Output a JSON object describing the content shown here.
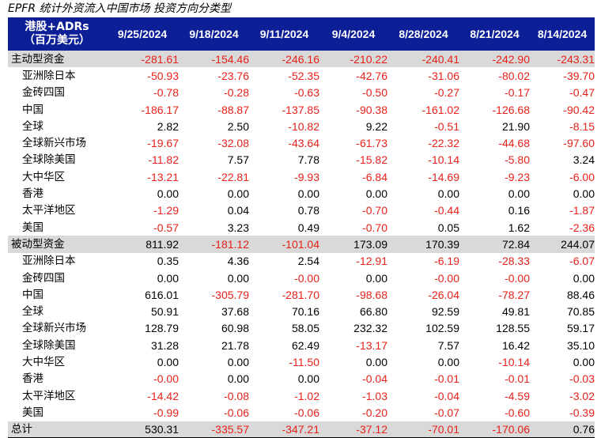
{
  "title": "EPFR 统计外资流入中国市场  投资方向分类型",
  "header": {
    "label_line1": "港股+ADRs",
    "label_line2": "（百万美元）",
    "dates": [
      "9/25/2024",
      "9/18/2024",
      "9/11/2024",
      "9/4/2024",
      "8/28/2024",
      "8/21/2024",
      "8/14/2024"
    ]
  },
  "colors": {
    "header_bg": "#0c1f96",
    "negative": "#e8211a",
    "section_bg": "#d9d9d9"
  },
  "rows": [
    {
      "label": "主动型资金",
      "type": "section",
      "values": [
        "-281.61",
        "-154.46",
        "-246.16",
        "-210.22",
        "-240.41",
        "-242.90",
        "-243.31"
      ]
    },
    {
      "label": "亚洲除日本",
      "type": "sub",
      "values": [
        "-50.93",
        "-23.76",
        "-52.35",
        "-42.76",
        "-31.06",
        "-80.02",
        "-39.70"
      ]
    },
    {
      "label": "金砖四国",
      "type": "sub",
      "values": [
        "-0.78",
        "-0.28",
        "-0.63",
        "-0.50",
        "-0.27",
        "-0.17",
        "-0.47"
      ]
    },
    {
      "label": "中国",
      "type": "sub",
      "values": [
        "-186.17",
        "-88.87",
        "-137.85",
        "-90.38",
        "-161.02",
        "-126.68",
        "-90.42"
      ]
    },
    {
      "label": "全球",
      "type": "sub",
      "values": [
        "2.82",
        "2.50",
        "-10.82",
        "9.22",
        "-0.51",
        "21.90",
        "-8.15"
      ]
    },
    {
      "label": "全球新兴市场",
      "type": "sub",
      "values": [
        "-19.67",
        "-32.08",
        "-43.64",
        "-61.73",
        "-22.32",
        "-44.68",
        "-97.60"
      ]
    },
    {
      "label": "全球除美国",
      "type": "sub",
      "values": [
        "-11.82",
        "7.57",
        "7.78",
        "-15.82",
        "-10.14",
        "-5.80",
        "3.24"
      ]
    },
    {
      "label": "大中华区",
      "type": "sub",
      "values": [
        "-13.21",
        "-22.81",
        "-9.93",
        "-6.84",
        "-14.69",
        "-9.23",
        "-6.00"
      ]
    },
    {
      "label": "香港",
      "type": "sub",
      "values": [
        "0.00",
        "0.00",
        "0.00",
        "0.00",
        "0.00",
        "0.00",
        "0.00"
      ]
    },
    {
      "label": "太平洋地区",
      "type": "sub",
      "values": [
        "-1.29",
        "0.04",
        "0.78",
        "-0.70",
        "-0.44",
        "0.16",
        "-1.87"
      ]
    },
    {
      "label": "美国",
      "type": "sub",
      "values": [
        "-0.57",
        "3.23",
        "0.49",
        "-0.70",
        "0.05",
        "1.62",
        "-2.36"
      ]
    },
    {
      "label": "被动型资金",
      "type": "section",
      "values": [
        "811.92",
        "-181.12",
        "-101.04",
        "173.09",
        "170.39",
        "72.84",
        "244.07"
      ]
    },
    {
      "label": "亚洲除日本",
      "type": "sub",
      "values": [
        "0.35",
        "4.36",
        "2.54",
        "-12.91",
        "-6.19",
        "-28.33",
        "-6.07"
      ]
    },
    {
      "label": "金砖四国",
      "type": "sub",
      "values": [
        "0.00",
        "0.00",
        "-0.00",
        "0.00",
        "-0.00",
        "-0.00",
        "0.00"
      ]
    },
    {
      "label": "中国",
      "type": "sub",
      "values": [
        "616.01",
        "-305.79",
        "-281.70",
        "-98.68",
        "-26.04",
        "-78.27",
        "88.46"
      ]
    },
    {
      "label": "全球",
      "type": "sub",
      "values": [
        "50.91",
        "37.68",
        "70.16",
        "66.80",
        "92.59",
        "49.81",
        "70.85"
      ]
    },
    {
      "label": "全球新兴市场",
      "type": "sub",
      "values": [
        "128.79",
        "60.98",
        "58.05",
        "232.32",
        "102.59",
        "128.55",
        "59.17"
      ]
    },
    {
      "label": "全球除美国",
      "type": "sub",
      "values": [
        "31.28",
        "21.78",
        "62.49",
        "-13.17",
        "7.57",
        "16.42",
        "35.10"
      ]
    },
    {
      "label": "大中华区",
      "type": "sub",
      "values": [
        "0.00",
        "0.00",
        "-11.50",
        "0.00",
        "0.00",
        "-10.14",
        "0.00"
      ]
    },
    {
      "label": "香港",
      "type": "sub",
      "values": [
        "-0.00",
        "0.00",
        "0.00",
        "-0.04",
        "-0.01",
        "-0.01",
        "-0.03"
      ]
    },
    {
      "label": "太平洋地区",
      "type": "sub",
      "values": [
        "-14.42",
        "-0.08",
        "-1.02",
        "-1.03",
        "-0.04",
        "-4.59",
        "-3.02"
      ]
    },
    {
      "label": "美国",
      "type": "sub",
      "values": [
        "-0.99",
        "-0.06",
        "-0.06",
        "-0.20",
        "-0.07",
        "-0.60",
        "-0.39"
      ]
    },
    {
      "label": "总计",
      "type": "total",
      "values": [
        "530.31",
        "-335.57",
        "-347.21",
        "-37.12",
        "-70.01",
        "-170.06",
        "0.76"
      ]
    }
  ]
}
